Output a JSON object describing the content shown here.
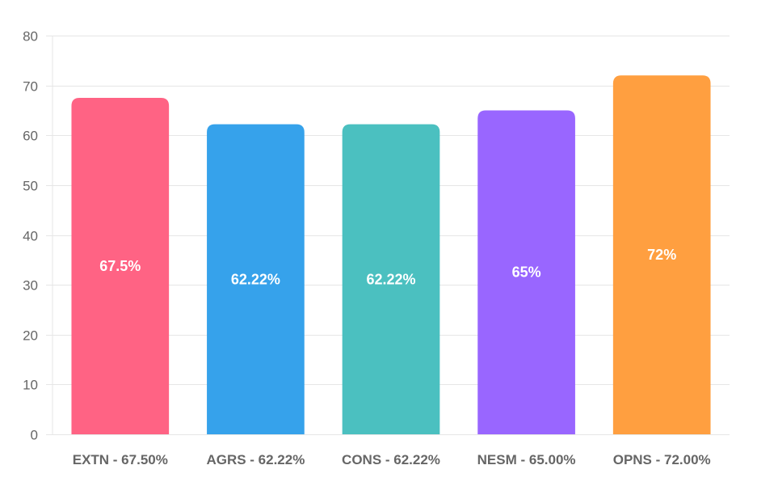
{
  "chart_data": {
    "type": "bar",
    "title": "",
    "xlabel": "",
    "ylabel": "",
    "ylim": [
      0,
      80
    ],
    "yticks": [
      0,
      10,
      20,
      30,
      40,
      50,
      60,
      70,
      80
    ],
    "grid": true,
    "legend": "none",
    "categories": [
      "EXTN - 67.50%",
      "AGRS - 62.22%",
      "CONS - 62.22%",
      "NESM - 65.00%",
      "OPNS - 72.00%"
    ],
    "values": [
      67.5,
      62.22,
      62.22,
      65,
      72
    ],
    "value_labels": [
      "67.5%",
      "62.22%",
      "62.22%",
      "65%",
      "72%"
    ],
    "colors": [
      "#ff6384",
      "#36a2eb",
      "#4bc0c0",
      "#9966ff",
      "#ff9f40"
    ]
  }
}
